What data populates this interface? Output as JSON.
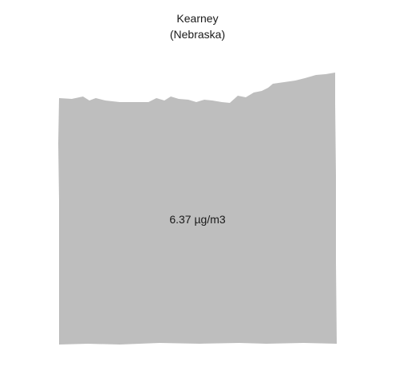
{
  "map": {
    "title": "Kearney",
    "subtitle": "(Nebraska)",
    "value_label": "6.37 µg/m3",
    "fill_color": "#bebebe",
    "background_color": "#ffffff"
  }
}
